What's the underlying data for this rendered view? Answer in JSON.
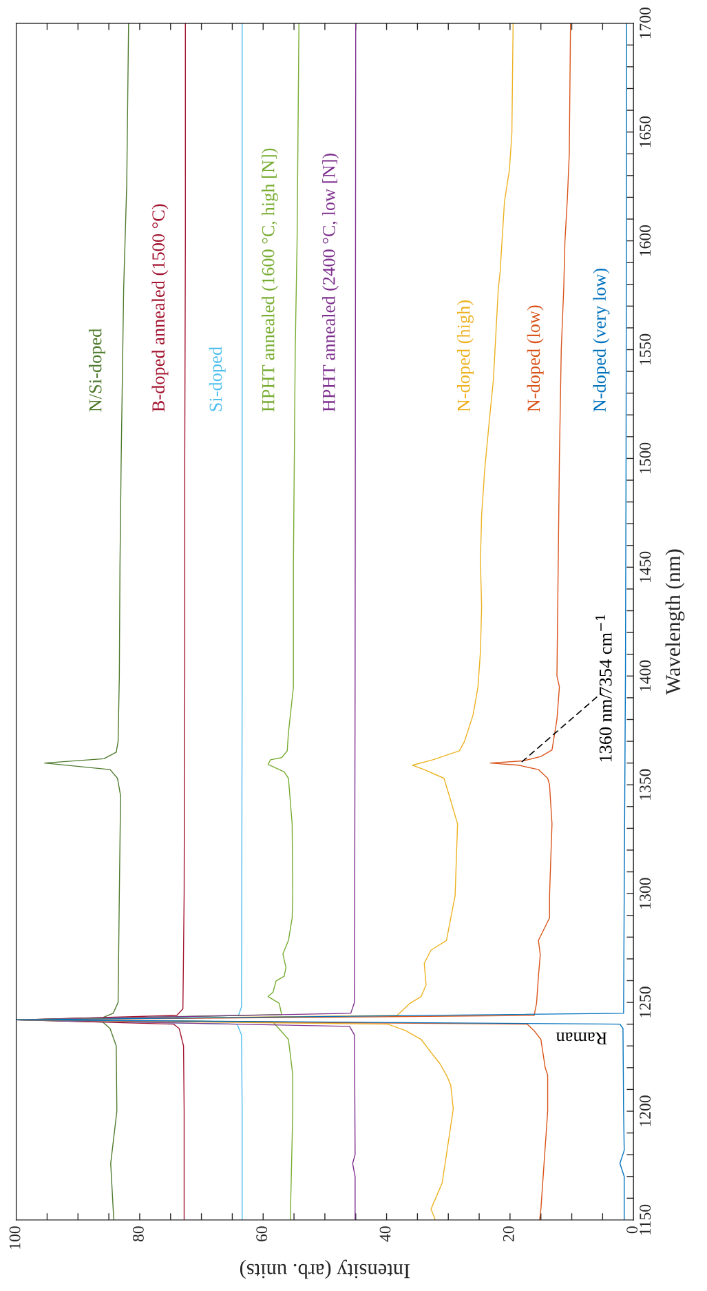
{
  "chart_data": {
    "type": "line",
    "xlabel": "Intensity (arb. units)",
    "ylabel": "Wavelength (nm)",
    "xlim": [
      100,
      0
    ],
    "ylim": [
      1150,
      1700
    ],
    "xticks": [
      100,
      {
        "value": 95,
        "label": null
      },
      {
        "value": 90,
        "label": null
      },
      {
        "value": 85,
        "label": null
      },
      80,
      {
        "value": 75,
        "label": null
      },
      {
        "value": 70,
        "label": null
      },
      {
        "value": 65,
        "label": null
      },
      60,
      {
        "value": 55,
        "label": null
      },
      {
        "value": 50,
        "label": null
      },
      {
        "value": 45,
        "label": null
      },
      40,
      {
        "value": 35,
        "label": null
      },
      {
        "value": 30,
        "label": null
      },
      {
        "value": 25,
        "label": null
      },
      20,
      {
        "value": 15,
        "label": null
      },
      {
        "value": 10,
        "label": null
      },
      {
        "value": 5,
        "label": null
      },
      0
    ],
    "yticks": [
      1150,
      {
        "value": 1160,
        "label": null
      },
      {
        "value": 1170,
        "label": null
      },
      {
        "value": 1180,
        "label": null
      },
      {
        "value": 1190,
        "label": null
      },
      1200,
      {
        "value": 1210,
        "label": null
      },
      {
        "value": 1220,
        "label": null
      },
      {
        "value": 1230,
        "label": null
      },
      {
        "value": 1240,
        "label": null
      },
      1250,
      {
        "value": 1260,
        "label": null
      },
      {
        "value": 1270,
        "label": null
      },
      {
        "value": 1280,
        "label": null
      },
      {
        "value": 1290,
        "label": null
      },
      1300,
      {
        "value": 1310,
        "label": null
      },
      {
        "value": 1320,
        "label": null
      },
      {
        "value": 1330,
        "label": null
      },
      {
        "value": 1340,
        "label": null
      },
      1350,
      {
        "value": 1360,
        "label": null
      },
      {
        "value": 1370,
        "label": null
      },
      {
        "value": 1380,
        "label": null
      },
      {
        "value": 1390,
        "label": null
      },
      1400,
      {
        "value": 1410,
        "label": null
      },
      {
        "value": 1420,
        "label": null
      },
      {
        "value": 1430,
        "label": null
      },
      {
        "value": 1440,
        "label": null
      },
      1450,
      {
        "value": 1460,
        "label": null
      },
      {
        "value": 1470,
        "label": null
      },
      {
        "value": 1480,
        "label": null
      },
      {
        "value": 1490,
        "label": null
      },
      1500,
      {
        "value": 1510,
        "label": null
      },
      {
        "value": 1520,
        "label": null
      },
      {
        "value": 1530,
        "label": null
      },
      {
        "value": 1540,
        "label": null
      },
      1550,
      {
        "value": 1560,
        "label": null
      },
      {
        "value": 1570,
        "label": null
      },
      {
        "value": 1580,
        "label": null
      },
      {
        "value": 1590,
        "label": null
      },
      1600,
      {
        "value": 1610,
        "label": null
      },
      {
        "value": 1620,
        "label": null
      },
      {
        "value": 1630,
        "label": null
      },
      {
        "value": 1640,
        "label": null
      },
      1650,
      {
        "value": 1660,
        "label": null
      },
      {
        "value": 1670,
        "label": null
      },
      {
        "value": 1680,
        "label": null
      },
      {
        "value": 1690,
        "label": null
      },
      1700
    ],
    "annotations": [
      "Raman",
      {
        "text": "1360 nm/7354 cm$^{−1}$",
        "x": 18.3,
        "y": 1360
      }
    ],
    "series": [
      {
        "name": "N/Si-doped",
        "color": "#4d7a2c",
        "values": [
          1150,
          1176,
          1200,
          1230,
          1238,
          1241,
          1242,
          1243,
          1245,
          1250,
          1300,
          1345,
          1353,
          1357,
          1360,
          1362,
          1365,
          1370,
          1400,
          1450,
          1500,
          1578,
          1626,
          1700
        ],
        "x": [
          84.2,
          84.7,
          83.7,
          83.8,
          84.8,
          86,
          100,
          86,
          84.3,
          83.5,
          83.3,
          83.1,
          83.6,
          84.8,
          95.4,
          85.8,
          83.8,
          83.5,
          83.3,
          83.2,
          83.0,
          82.6,
          82.1,
          81.8
        ]
      },
      {
        "name": "B-doped annealed (1500 °C)",
        "color": "#a2142f",
        "values": [
          1150,
          1200,
          1230,
          1238,
          1240,
          1242,
          1244,
          1247,
          1300,
          1400,
          1500,
          1600,
          1700
        ],
        "x": [
          72.8,
          72.8,
          72.9,
          73.6,
          74.5,
          100,
          74.0,
          73.0,
          72.8,
          72.7,
          72.7,
          72.6,
          72.6
        ]
      },
      {
        "name": "Si-doped",
        "color": "#4dbeee",
        "values": [
          1150,
          1200,
          1235,
          1240,
          1242,
          1244,
          1248,
          1400,
          1700
        ],
        "x": [
          63.4,
          63.4,
          63.5,
          64.2,
          100,
          64.0,
          63.5,
          63.4,
          63.4
        ]
      },
      {
        "name": "HPHT annealed (1600 °C, high [N])",
        "color": "#77ac30",
        "values": [
          1150,
          1200,
          1216.6,
          1233,
          1241,
          1242,
          1244.4,
          1249.6,
          1252.7,
          1254.7,
          1259.9,
          1262,
          1266,
          1272.3,
          1278.5,
          1288.8,
          1299,
          1332,
          1353,
          1356,
          1359.4,
          1361.5,
          1362.5,
          1365.6,
          1374,
          1394.8,
          1450,
          1550,
          1600,
          1700
        ],
        "x": [
          55.6,
          55.2,
          55.2,
          55.9,
          58.4,
          100,
          57.0,
          57.4,
          59.2,
          58.4,
          57.9,
          56.6,
          56.3,
          56.8,
          55.9,
          55.3,
          55.2,
          55.3,
          55.9,
          56.6,
          59.2,
          58.8,
          57.0,
          56.1,
          55.9,
          55.1,
          55.1,
          54.8,
          54.5,
          54.2
        ]
      },
      {
        "name": "HPHT annealed (2400 °C, low [N])",
        "color": "#7e2f8e",
        "values": [
          1150,
          1170,
          1176,
          1180,
          1235,
          1239,
          1242,
          1245,
          1250,
          1400,
          1700
        ],
        "x": [
          45.1,
          45.1,
          45.5,
          45.1,
          45.2,
          46.0,
          100,
          45.8,
          45.2,
          45.1,
          45.0
        ]
      },
      {
        "name": "N-doped (high)",
        "color": "#edb120",
        "values": [
          1150,
          1155,
          1167,
          1180,
          1201,
          1212,
          1216.6,
          1222,
          1227,
          1233,
          1237,
          1240,
          1242,
          1244,
          1249.6,
          1252.7,
          1258,
          1268,
          1274,
          1278.5,
          1288.8,
          1299,
          1332,
          1342.7,
          1353,
          1357,
          1359,
          1361.5,
          1365.6,
          1369.8,
          1382,
          1394.8,
          1411,
          1432,
          1453,
          1474,
          1495,
          1516,
          1536,
          1557,
          1578,
          1586,
          1618,
          1632.6,
          1649.5,
          1700
        ],
        "x": [
          32.1,
          32.8,
          31.0,
          30.3,
          29.2,
          29.6,
          30.3,
          31.4,
          32.8,
          34.4,
          36.9,
          39.8,
          100,
          38.3,
          36.2,
          34.4,
          33.6,
          33.9,
          32.8,
          30.3,
          29.6,
          28.9,
          28.5,
          29.6,
          30.7,
          33.9,
          35.8,
          32.5,
          28.2,
          27.4,
          26.0,
          25.2,
          24.8,
          24.6,
          24.8,
          24.6,
          24.1,
          23.4,
          22.7,
          22.3,
          21.9,
          21.6,
          20.9,
          20.1,
          19.7,
          19.5
        ]
      },
      {
        "name": "N-doped (low)",
        "color": "#d95319",
        "values": [
          1150,
          1155,
          1200,
          1216.6,
          1220,
          1233,
          1237,
          1240,
          1242,
          1244,
          1249.6,
          1262,
          1272,
          1278.5,
          1288.8,
          1299,
          1332,
          1350,
          1353,
          1357,
          1359,
          1360,
          1361,
          1363,
          1366,
          1380,
          1395,
          1400,
          1450,
          1500,
          1550,
          1578,
          1600,
          1620,
          1640,
          1700
        ],
        "x": [
          15.2,
          15.0,
          13.9,
          13.9,
          14.3,
          15.0,
          16.1,
          17.2,
          100,
          16.1,
          15.7,
          15.4,
          15.1,
          15.4,
          13.6,
          13.6,
          13.2,
          13.6,
          13.9,
          15.4,
          18.6,
          23.2,
          17.9,
          15.0,
          13.2,
          12.4,
          12.0,
          12.4,
          12.2,
          12.0,
          11.7,
          11.3,
          11.1,
          10.7,
          10.4,
          10.2
        ]
      },
      {
        "name": "N-doped (very low)",
        "color": "#0072bd",
        "values": [
          1150,
          1170,
          1176,
          1182,
          1200,
          1238,
          1240,
          1242,
          1245,
          1300,
          1400,
          1500,
          1700
        ],
        "x": [
          1.5,
          1.5,
          2.2,
          1.5,
          1.6,
          1.7,
          2.2,
          100,
          1.6,
          1.5,
          1.3,
          1.2,
          1.1
        ]
      }
    ]
  }
}
